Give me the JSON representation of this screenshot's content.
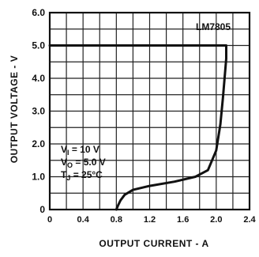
{
  "chart_data": {
    "type": "line",
    "xlabel": "OUTPUT CURRENT - A",
    "ylabel": "OUTPUT VOLTAGE - V",
    "xlim": [
      0,
      2.4
    ],
    "ylim": [
      0,
      6.0
    ],
    "x_ticks": [
      "0",
      "0.4",
      "0.8",
      "1.2",
      "1.6",
      "2.0",
      "2.4"
    ],
    "x_tick_values": [
      0,
      0.4,
      0.8,
      1.2,
      1.6,
      2.0,
      2.4
    ],
    "y_ticks": [
      "0",
      "1.0",
      "2.0",
      "3.0",
      "4.0",
      "5.0",
      "6.0"
    ],
    "y_tick_values": [
      0,
      1.0,
      2.0,
      3.0,
      4.0,
      5.0,
      6.0
    ],
    "grid": true,
    "series": [
      {
        "name": "LM7805",
        "color": "#111111",
        "points": [
          [
            0,
            5.0
          ],
          [
            2.12,
            5.0
          ],
          [
            2.12,
            4.6
          ],
          [
            2.1,
            4.0
          ],
          [
            2.08,
            3.4
          ],
          [
            2.05,
            2.6
          ],
          [
            2.0,
            1.8
          ],
          [
            1.9,
            1.2
          ],
          [
            1.75,
            1.0
          ],
          [
            1.5,
            0.85
          ],
          [
            1.2,
            0.72
          ],
          [
            1.0,
            0.6
          ],
          [
            0.9,
            0.45
          ],
          [
            0.85,
            0.28
          ],
          [
            0.82,
            0.12
          ],
          [
            0.8,
            0.0
          ]
        ]
      }
    ],
    "conditions": [
      {
        "symbol": "V",
        "sub": "I",
        "value": " = 10 V"
      },
      {
        "symbol": "V",
        "sub": "O",
        "value": " = 5.0 V"
      },
      {
        "symbol": "T",
        "sub": "J",
        "value": " = 25°C"
      }
    ]
  }
}
